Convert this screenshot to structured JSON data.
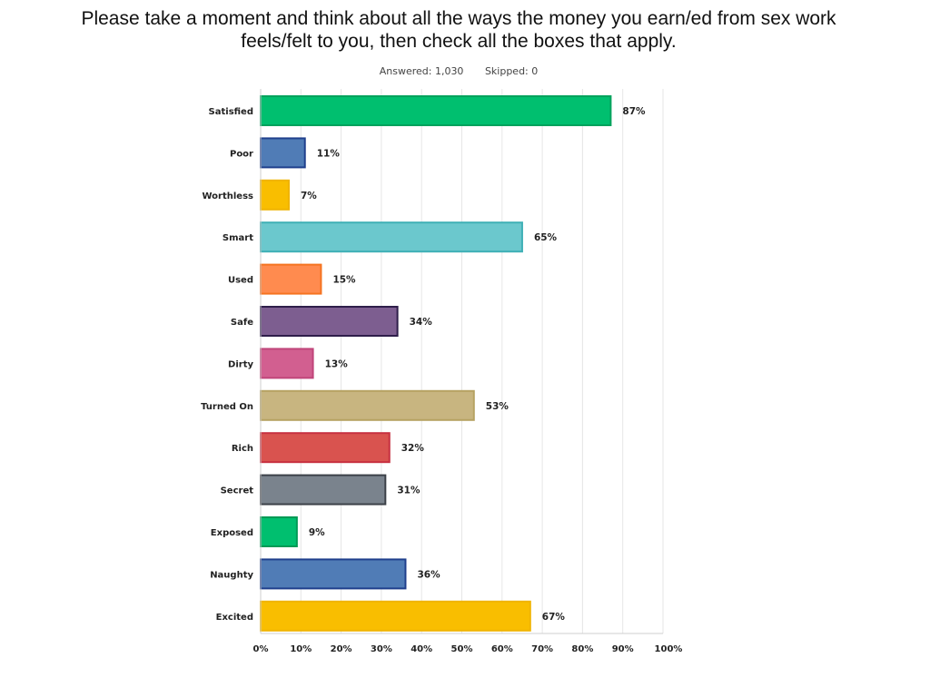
{
  "title": {
    "line1": "Please take a moment and think about all the ways the money you earn/ed from sex work",
    "line2": "feels/felt to you, then check all the boxes that apply."
  },
  "meta": {
    "answered": "Answered: 1,030",
    "skipped": "Skipped: 0"
  },
  "chart_data": {
    "type": "bar",
    "orientation": "horizontal",
    "categories": [
      "Satisfied",
      "Poor",
      "Worthless",
      "Smart",
      "Used",
      "Safe",
      "Dirty",
      "Turned On",
      "Rich",
      "Secret",
      "Exposed",
      "Naughty",
      "Excited"
    ],
    "values": [
      87,
      11,
      7,
      65,
      15,
      34,
      13,
      53,
      32,
      31,
      9,
      36,
      67
    ],
    "value_labels": [
      "87%",
      "11%",
      "7%",
      "65%",
      "15%",
      "34%",
      "13%",
      "53%",
      "32%",
      "31%",
      "9%",
      "36%",
      "67%"
    ],
    "colors": [
      "#00bf6f",
      "#507cb6",
      "#f9be00",
      "#6bc8cd",
      "#ff8b4f",
      "#7d5e90",
      "#d25f90",
      "#c8b580",
      "#d9534f",
      "#7a838d",
      "#00bf6f",
      "#507cb6",
      "#f9be00"
    ],
    "border_colors": [
      "#00a25c",
      "#1f3f8c",
      "#f0b400",
      "#3fb0b6",
      "#f57320",
      "#2e1e4a",
      "#c0457a",
      "#b6a262",
      "#c73040",
      "#3c4148",
      "#009a55",
      "#1f3f8c",
      "#f0b400"
    ],
    "xlim": [
      0,
      100
    ],
    "xticks": [
      "0%",
      "10%",
      "20%",
      "30%",
      "40%",
      "50%",
      "60%",
      "70%",
      "80%",
      "90%",
      "100%"
    ],
    "title": "Please take a moment and think about all the ways the money you earn/ed from sex work feels/felt to you, then check all the boxes that apply.",
    "xlabel": "",
    "ylabel": "",
    "grid": true,
    "legend": "none"
  }
}
